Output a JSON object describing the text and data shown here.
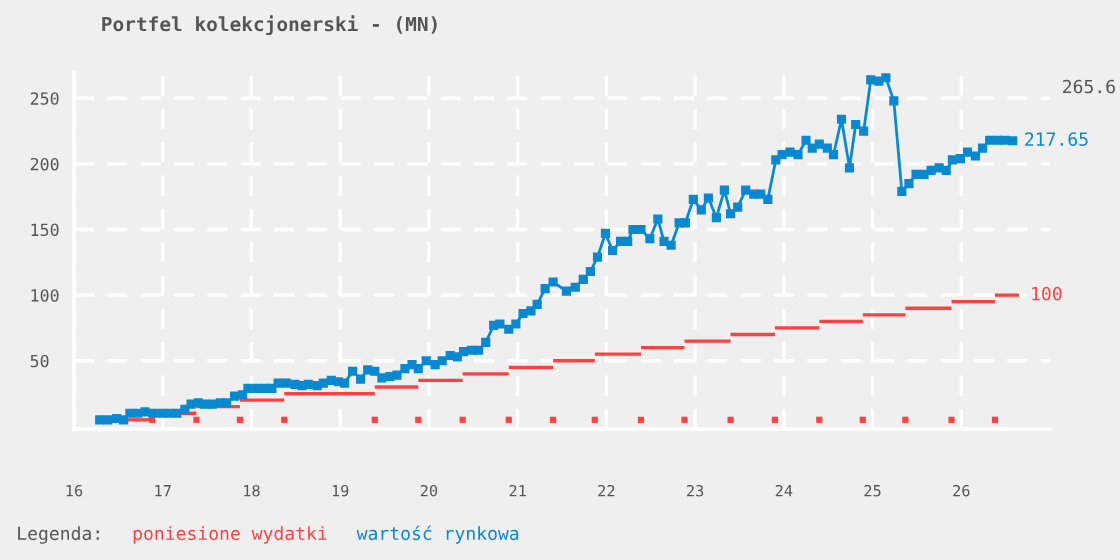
{
  "chart_data": {
    "type": "line",
    "title": "Portfel kolekcjonerski - (MN)",
    "xlim": [
      16,
      27
    ],
    "xticks": [
      {
        "value": 16,
        "label": "16"
      },
      {
        "value": 17,
        "label": "17"
      },
      {
        "value": 18,
        "label": "18"
      },
      {
        "value": 19,
        "label": "19"
      },
      {
        "value": 20,
        "label": "20"
      },
      {
        "value": 21,
        "label": "21"
      },
      {
        "value": 22,
        "label": "22"
      },
      {
        "value": 23,
        "label": "23"
      },
      {
        "value": 24,
        "label": "24"
      },
      {
        "value": 25,
        "label": "25"
      },
      {
        "value": 26,
        "label": "26"
      }
    ],
    "ylim": [
      -2,
      270
    ],
    "yticks": [
      50,
      100,
      150,
      200,
      250
    ],
    "grid": true,
    "legend": "bottom",
    "legend_title": "Legenda:",
    "line_style": "solid",
    "annotations": [
      "265.6"
    ],
    "series": [
      {
        "name": "poniesione wydatki",
        "type": "step",
        "color": "#ff4040",
        "x": [
          16.56,
          16.88,
          17.38,
          17.87,
          18.37,
          19.39,
          19.88,
          20.38,
          20.9,
          21.4,
          21.87,
          22.39,
          22.88,
          23.4,
          23.9,
          24.4,
          24.89,
          25.37,
          25.89,
          26.38,
          26.65
        ],
        "values": [
          5,
          10,
          15,
          20,
          25,
          30,
          35,
          40,
          45,
          50,
          55,
          60,
          65,
          70,
          75,
          80,
          85,
          90,
          95,
          100,
          100
        ],
        "value_labels": [
          null,
          null,
          null,
          null,
          null,
          null,
          null,
          null,
          null,
          null,
          null,
          null,
          null,
          null,
          null,
          null,
          null,
          null,
          null,
          null,
          "100"
        ]
      },
      {
        "type": "scatter",
        "color": "#ff4040",
        "marker": "square",
        "x": [
          16.88,
          17.38,
          17.87,
          18.37,
          19.39,
          19.88,
          20.38,
          20.9,
          21.4,
          21.87,
          22.39,
          22.88,
          23.4,
          23.9,
          24.4,
          24.89,
          25.37,
          25.89,
          26.38
        ],
        "values": [
          5,
          5,
          5,
          5,
          5,
          5,
          5,
          5,
          5,
          5,
          5,
          5,
          5,
          5,
          5,
          5,
          5,
          5,
          5
        ]
      },
      {
        "name": "wartość rynkowa",
        "color": "#0a88d0",
        "marker": "square",
        "x": [
          16.29,
          16.38,
          16.48,
          16.56,
          16.63,
          16.72,
          16.8,
          16.89,
          16.99,
          17.08,
          17.16,
          17.25,
          17.32,
          17.4,
          17.47,
          17.56,
          17.65,
          17.72,
          17.81,
          17.9,
          17.96,
          18.06,
          18.15,
          18.23,
          18.3,
          18.39,
          18.49,
          18.57,
          18.64,
          18.74,
          18.81,
          18.9,
          18.98,
          19.05,
          19.14,
          19.23,
          19.31,
          19.39,
          19.47,
          19.56,
          19.64,
          19.73,
          19.81,
          19.88,
          19.97,
          20.07,
          20.15,
          20.24,
          20.32,
          20.39,
          20.48,
          20.56,
          20.64,
          20.73,
          20.8,
          20.9,
          20.98,
          21.06,
          21.15,
          21.22,
          21.31,
          21.4,
          21.55,
          21.65,
          21.74,
          21.82,
          21.9,
          21.99,
          22.07,
          22.16,
          22.24,
          22.3,
          22.39,
          22.49,
          22.58,
          22.65,
          22.73,
          22.82,
          22.89,
          22.98,
          23.07,
          23.15,
          23.24,
          23.33,
          23.4,
          23.48,
          23.57,
          23.66,
          23.74,
          23.82,
          23.91,
          23.98,
          24.07,
          24.16,
          24.25,
          24.32,
          24.4,
          24.49,
          24.56,
          24.65,
          24.74,
          24.81,
          24.9,
          24.98,
          25.07,
          25.15,
          25.24,
          25.33,
          25.41,
          25.49,
          25.58,
          25.66,
          25.75,
          25.83,
          25.9,
          25.99,
          26.07,
          26.16,
          26.24,
          26.32,
          26.41,
          26.49,
          26.58
        ],
        "values": [
          5,
          5,
          6,
          5,
          10,
          10,
          11,
          10,
          10,
          10,
          10,
          13,
          17,
          18,
          17,
          17,
          18,
          18,
          23,
          24,
          29,
          29,
          29,
          29,
          33,
          33,
          32,
          31,
          32,
          31,
          33,
          35,
          34,
          33,
          42,
          36,
          43,
          42,
          37,
          38,
          39,
          44,
          47,
          44,
          50,
          47,
          50,
          54,
          53,
          57,
          58,
          58,
          64,
          77,
          78,
          74,
          78,
          86,
          88,
          93,
          105,
          110,
          103,
          106,
          112,
          118,
          129,
          147,
          134,
          141,
          141,
          150,
          150,
          143,
          158,
          141,
          138,
          155,
          155,
          173,
          165,
          174,
          159,
          180,
          162,
          167,
          180,
          177,
          177,
          173,
          203,
          207,
          209,
          207,
          218,
          212,
          215,
          212,
          207,
          234,
          197,
          230,
          225,
          264,
          263,
          265.6,
          248,
          179,
          185,
          192,
          192,
          195,
          197,
          195,
          203,
          204,
          209,
          206,
          212,
          218,
          218,
          218,
          217.65
        ],
        "value_labels": [
          null,
          null,
          null,
          null,
          null,
          null,
          null,
          null,
          null,
          null,
          null,
          null,
          null,
          null,
          null,
          null,
          null,
          null,
          null,
          null,
          null,
          null,
          null,
          null,
          null,
          null,
          null,
          null,
          null,
          null,
          null,
          null,
          null,
          null,
          null,
          null,
          null,
          null,
          null,
          null,
          null,
          null,
          null,
          null,
          null,
          null,
          null,
          null,
          null,
          null,
          null,
          null,
          null,
          null,
          null,
          null,
          null,
          null,
          null,
          null,
          null,
          null,
          null,
          null,
          null,
          null,
          null,
          null,
          null,
          null,
          null,
          null,
          null,
          null,
          null,
          null,
          null,
          null,
          null,
          null,
          null,
          null,
          null,
          null,
          null,
          null,
          null,
          null,
          null,
          null,
          null,
          null,
          null,
          null,
          null,
          null,
          null,
          null,
          null,
          null,
          null,
          null,
          null,
          null,
          null,
          null,
          null,
          null,
          null,
          null,
          null,
          null,
          null,
          null,
          null,
          null,
          null,
          null,
          null,
          null,
          null,
          null,
          "217.65"
        ]
      }
    ]
  }
}
